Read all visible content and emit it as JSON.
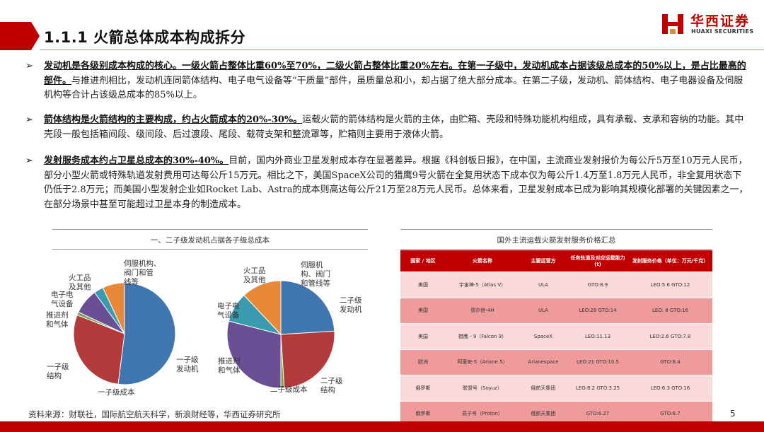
{
  "header": {
    "title": "1.1.1 火箭总体成本构成拆分",
    "brand_cn": "华西证券",
    "brand_en": "HUAXI SECURITIES"
  },
  "paragraphs": [
    {
      "bold": "发动机是各级别成本构成的核心。一级火箭占整体比重60%至70%，二级火箭占整体比重20%左右。在第一子级中，发动机成本占据该级总成本的50%以上，是占比最高的部件。",
      "text": "与推进剂相比，发动机连同箭体结构、电子电气设备等“干质量”部件，虽质量总和小，却占据了绝大部分成本。在第二子级，发动机、箭体结构、电子电器设备及伺服机构等合计占该级总成本的85%以上。"
    },
    {
      "bold": "箭体结构是火箭结构的主要构成，约占火箭成本的20%-30%。",
      "text": "运载火箭的箭体结构是火箭的主体，由贮箱、壳段和特殊功能机构组成，具有承载、支承和容纳的功能。其中壳段一般包括箱间段、级间段、后过渡段、尾段、载荷支架和整流罩等，贮箱则主要用于液体火箭。"
    },
    {
      "bold": "发射服务成本约占卫星总成本的30%-40%。",
      "text": "目前，国内外商业卫星发射成本存在显著差异。根据《科创板日报》，在中国，主流商业发射报价为每公斤5万至10万元人民币，部分小型火箭或特殊轨道发射费用可达每公斤15万元。相比之下，美国SpaceX公司的猎鹰9号火箭在全复用状态下成本仅为每公斤1.4万至1.8万元人民币，非全复用状态下仍低于2.8万元；而美国小型发射企业如Rocket Lab、Astra的成本则高达每公斤21万至28万元人民币。总体来看，卫星发射成本已成为影响其规模化部署的关键因素之一，在部分场景中甚至可能超过卫星本身的制造成本。"
    }
  ],
  "pie_panel": {
    "title": "一、二子级发动机占据各子级总成本",
    "first_stage_caption": "一子级成本",
    "second_stage_caption": "二子级成本",
    "first_stage_labels": {
      "servo": "伺服机构、\n阀门和管\n线等",
      "fire": "火工品\n及其他",
      "elec": "电子电\n气设备",
      "prop": "推进剂\n和气体",
      "struct": "一子级\n结构",
      "engine": "一子级\n发动机"
    },
    "second_stage_labels": {
      "fire": "火工品\n及其他",
      "servo": "伺服机\n构、阀门\n和管线等",
      "engine": "二子级\n发动机",
      "elec": "电子电\n气设备",
      "prop": "推进剂\n和气体",
      "struct": "二子级\n结构"
    },
    "colors": {
      "engine": "#3f76b0",
      "struct": "#b33a3a",
      "prop": "#7da34a",
      "elec": "#6b4f94",
      "fire": "#3a9ab0",
      "servo": "#e8893a"
    }
  },
  "chart_data": [
    {
      "type": "pie",
      "title": "一子级成本",
      "categories": [
        "一子级发动机",
        "一子级结构",
        "推进剂和气体",
        "电子电气设备",
        "火工品及其他",
        "伺服机构、阀门和管线等"
      ],
      "values": [
        52,
        29,
        1,
        8,
        3,
        7
      ]
    },
    {
      "type": "pie",
      "title": "二子级成本",
      "categories": [
        "二子级发动机",
        "二子级结构",
        "推进剂和气体",
        "电子电气设备",
        "火工品及其他",
        "伺服机构、阀门和管线等"
      ],
      "values": [
        24,
        25,
        1,
        29,
        9,
        12
      ]
    }
  ],
  "table": {
    "title": "国外主流运载火箭发射服务价格汇总",
    "headers": [
      "国家 / 地区",
      "火箭名称",
      "主要运营方",
      "任务轨道及对应运载能力(t)",
      "发射服务价格（单位：万元/千克）"
    ],
    "rows": [
      [
        "美国",
        "宇宙神-5（Atlas V）",
        "ULA",
        "GTO:8.9",
        "LEO:5.6 GTO:12"
      ],
      [
        "美国",
        "德尔他-4H",
        "ULA",
        "LEO:28 GTO:14",
        "LEO: 8  GTO:16"
      ],
      [
        "美国",
        "猎鹰 - 9（Falcon 9）",
        "SpaceX",
        "LEO:11.13",
        "LEO:2.6 GTO:7.8"
      ],
      [
        "欧洲",
        "阿里安-5（Ariane 5）",
        "Arianespace",
        "LEO:21 GTO:10.5",
        "GTO:8.4"
      ],
      [
        "俄罗斯",
        "联盟号（Soyuz）",
        "俄航天集团",
        "LEO:8.2  GTO:3.25",
        "LEO:6.3 GTO:16"
      ],
      [
        "俄罗斯",
        "质子号（Proton）",
        "俄航天集团",
        "GTO:6.27",
        "GTO:6.7"
      ]
    ]
  },
  "footer": {
    "source": "资料来源：财联社，国际航空航天科学，新浪财经等，华西证券研究所",
    "page": "5"
  }
}
